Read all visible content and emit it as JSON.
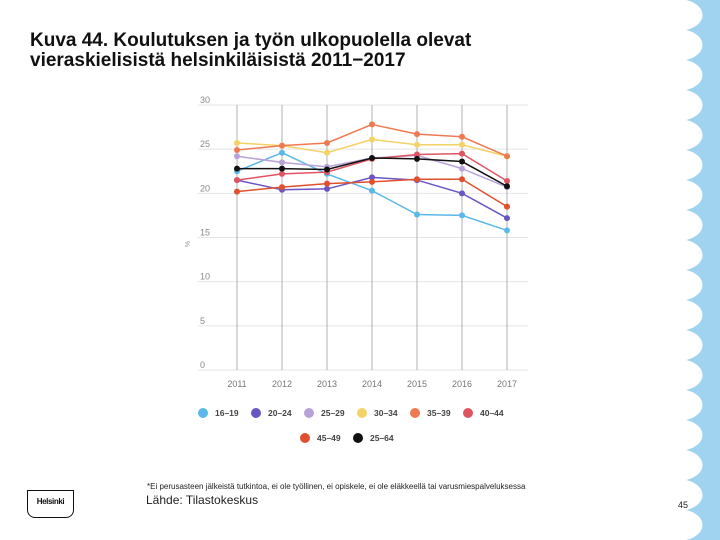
{
  "slide": {
    "title_line1": "Kuva 44. Koulutuksen ja työn ulkopuolella olevat",
    "title_line2": "vieraskielisistä helsinkiläisistä 2011−2017",
    "footnote": "*Ei perusasteen jälkeistä tutkintoa, ei ole työllinen, ei opiskele, ei ole eläkkeellä tai varusmiespalveluksessa",
    "source": "Lähde: Tilastokeskus",
    "page_number": "45",
    "logo_text": "Helsinki",
    "wave_color": "#9fd3ef"
  },
  "chart_data": {
    "type": "line",
    "title": "",
    "xlabel": "",
    "ylabel": "%",
    "x": [
      2011,
      2012,
      2013,
      2014,
      2015,
      2016,
      2017
    ],
    "ylim": [
      0,
      30
    ],
    "yticks": [
      0,
      5,
      10,
      15,
      20,
      25,
      30
    ],
    "grid": true,
    "legend_position": "bottom",
    "series": [
      {
        "name": "16–19",
        "color": "#5bb8e8",
        "values": [
          22.5,
          24.6,
          22.2,
          20.3,
          17.6,
          17.5,
          15.8
        ]
      },
      {
        "name": "20–24",
        "color": "#6a55c4",
        "values": [
          21.5,
          20.4,
          20.5,
          21.8,
          21.5,
          20.0,
          17.2
        ]
      },
      {
        "name": "25–29",
        "color": "#b8a2d8",
        "values": [
          24.2,
          23.5,
          23.0,
          24.0,
          24.3,
          22.8,
          20.7
        ]
      },
      {
        "name": "30–34",
        "color": "#f3d266",
        "values": [
          25.7,
          25.4,
          24.6,
          26.1,
          25.5,
          25.5,
          24.2
        ]
      },
      {
        "name": "35–39",
        "color": "#ee7a52",
        "values": [
          24.9,
          25.4,
          25.7,
          27.8,
          26.7,
          26.4,
          24.2
        ]
      },
      {
        "name": "40–44",
        "color": "#e05462",
        "values": [
          21.5,
          22.2,
          22.4,
          23.9,
          24.4,
          24.5,
          21.4
        ]
      },
      {
        "name": "45–49",
        "color": "#e0502e",
        "values": [
          20.2,
          20.7,
          21.1,
          21.3,
          21.6,
          21.6,
          18.5
        ]
      },
      {
        "name": "25–64",
        "color": "#111111",
        "values": [
          22.8,
          22.8,
          22.7,
          24.0,
          23.9,
          23.6,
          20.8
        ]
      }
    ]
  }
}
